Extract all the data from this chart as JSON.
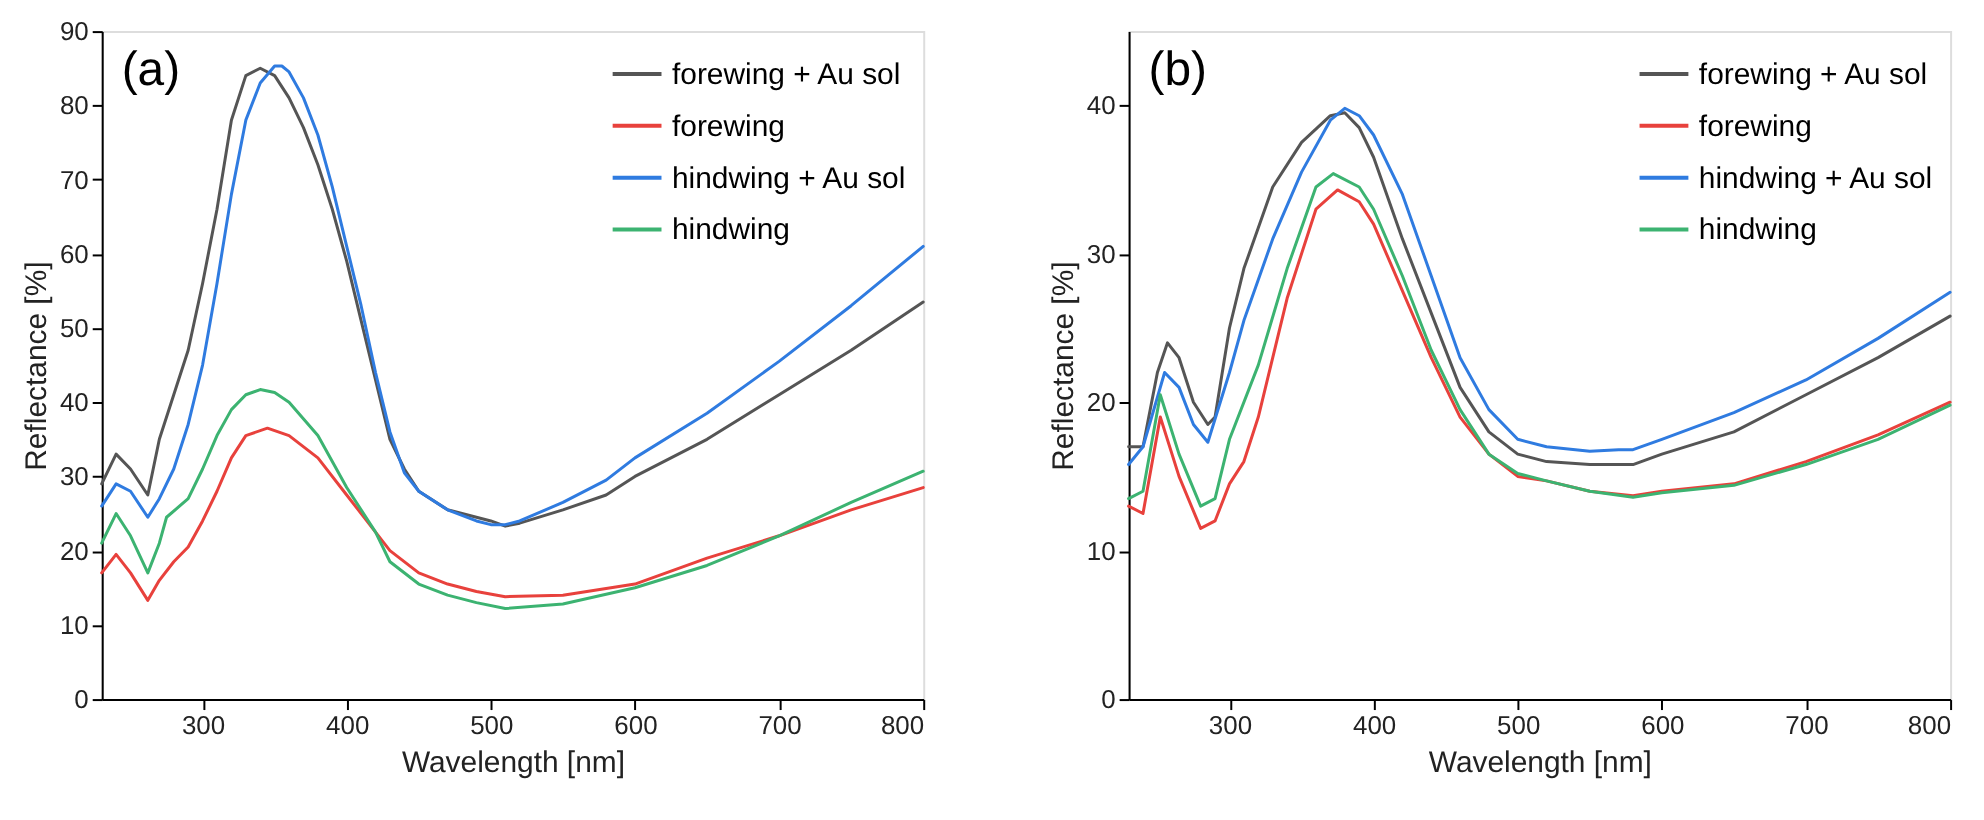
{
  "chart_data": [
    {
      "type": "line",
      "title": "(a)",
      "xlabel": "Wavelength [nm]",
      "ylabel": "Reflectance [%]",
      "xlim": [
        230,
        800
      ],
      "xticks": [
        300,
        400,
        500,
        600,
        700,
        800
      ],
      "ylim": [
        0,
        90
      ],
      "yticks": [
        0,
        10,
        20,
        30,
        40,
        50,
        60,
        70,
        80,
        90
      ],
      "grid": false,
      "legend": "top right",
      "series": [
        {
          "name": "forewing + Au sol",
          "color": "#555555",
          "x": [
            230,
            240,
            250,
            262,
            270,
            280,
            290,
            300,
            310,
            320,
            330,
            340,
            350,
            360,
            370,
            380,
            390,
            400,
            410,
            420,
            430,
            440,
            450,
            470,
            490,
            500,
            510,
            520,
            550,
            580,
            600,
            650,
            700,
            750,
            800
          ],
          "values": [
            29,
            33,
            31,
            27.5,
            35,
            41,
            47,
            56,
            66,
            78,
            84,
            85,
            84,
            81,
            77,
            72,
            66,
            59,
            51,
            43,
            35,
            31,
            28,
            25.5,
            24.5,
            24,
            23.3,
            23.7,
            25.5,
            27.5,
            30,
            35,
            41,
            47,
            53.5
          ]
        },
        {
          "name": "forewing",
          "color": "#e8413c",
          "x": [
            230,
            240,
            250,
            262,
            270,
            280,
            290,
            300,
            310,
            320,
            330,
            345,
            360,
            380,
            400,
            420,
            430,
            450,
            470,
            490,
            510,
            550,
            600,
            650,
            700,
            750,
            800
          ],
          "values": [
            17,
            19.5,
            17,
            13.3,
            16,
            18.5,
            20.5,
            24,
            28,
            32.5,
            35.5,
            36.5,
            35.5,
            32.5,
            27.5,
            22.5,
            20,
            17,
            15.5,
            14.5,
            13.8,
            14,
            15.5,
            19,
            22,
            25.5,
            28.5
          ]
        },
        {
          "name": "hindwing + Au sol",
          "color": "#2f7be0",
          "x": [
            230,
            240,
            250,
            262,
            270,
            280,
            290,
            300,
            310,
            320,
            330,
            340,
            350,
            355,
            360,
            370,
            380,
            390,
            400,
            410,
            420,
            430,
            440,
            450,
            470,
            490,
            500,
            510,
            520,
            550,
            580,
            600,
            650,
            700,
            750,
            800
          ],
          "values": [
            26,
            29,
            28,
            24.5,
            27,
            31,
            37,
            45,
            56,
            68,
            78,
            83,
            85.3,
            85.3,
            84.5,
            81,
            76,
            69,
            61,
            53,
            44,
            36,
            30.5,
            28,
            25.5,
            24,
            23.5,
            23.5,
            24,
            26.5,
            29.5,
            32.5,
            38.5,
            45.5,
            53,
            61
          ]
        },
        {
          "name": "hindwing",
          "color": "#3cb371",
          "x": [
            230,
            240,
            250,
            262,
            270,
            275,
            290,
            300,
            310,
            320,
            330,
            340,
            350,
            360,
            380,
            400,
            420,
            430,
            450,
            470,
            490,
            510,
            550,
            600,
            650,
            700,
            750,
            800
          ],
          "values": [
            21,
            25,
            22,
            17,
            21,
            24.5,
            27,
            31,
            35.5,
            39,
            41,
            41.7,
            41.3,
            40,
            35.5,
            28.5,
            22.5,
            18.5,
            15.5,
            14,
            13,
            12.2,
            12.8,
            15,
            18,
            22,
            26.5,
            30.7
          ]
        }
      ]
    },
    {
      "type": "line",
      "title": "(b)",
      "xlabel": "Wavelength [nm]",
      "ylabel": "Reflectance [%]",
      "xlim": [
        230,
        800
      ],
      "xticks": [
        300,
        400,
        500,
        600,
        700,
        800
      ],
      "ylim": [
        0,
        45
      ],
      "yticks": [
        0,
        10,
        20,
        30,
        40
      ],
      "grid": false,
      "legend": "top right",
      "series": [
        {
          "name": "forewing + Au sol",
          "color": "#555555",
          "x": [
            230,
            240,
            250,
            257,
            265,
            275,
            285,
            290,
            300,
            310,
            330,
            350,
            370,
            380,
            390,
            400,
            420,
            440,
            460,
            480,
            500,
            520,
            550,
            580,
            600,
            650,
            700,
            750,
            800
          ],
          "values": [
            17,
            17,
            22,
            24,
            23,
            20,
            18.5,
            19,
            25,
            29,
            34.5,
            37.5,
            39.3,
            39.5,
            38.5,
            36.5,
            31,
            26,
            21,
            18,
            16.5,
            16,
            15.8,
            15.8,
            16.5,
            18,
            20.5,
            23,
            25.8
          ]
        },
        {
          "name": "forewing",
          "color": "#e8413c",
          "x": [
            230,
            240,
            252,
            265,
            280,
            290,
            300,
            310,
            320,
            340,
            360,
            375,
            390,
            400,
            420,
            440,
            460,
            480,
            500,
            520,
            550,
            580,
            600,
            650,
            700,
            750,
            800
          ],
          "values": [
            13,
            12.5,
            19,
            15,
            11.5,
            12,
            14.5,
            16,
            19,
            27,
            33,
            34.3,
            33.5,
            32,
            27.5,
            23,
            19,
            16.5,
            15,
            14.7,
            14,
            13.7,
            14,
            14.5,
            16,
            17.8,
            20
          ]
        },
        {
          "name": "hindwing + Au sol",
          "color": "#2f7be0",
          "x": [
            230,
            240,
            255,
            265,
            275,
            285,
            300,
            310,
            330,
            350,
            370,
            380,
            390,
            400,
            420,
            440,
            460,
            480,
            500,
            520,
            550,
            570,
            580,
            600,
            650,
            700,
            750,
            800
          ],
          "values": [
            15.8,
            17,
            22,
            21,
            18.5,
            17.3,
            22,
            25.5,
            31,
            35.5,
            39,
            39.8,
            39.3,
            38,
            34,
            28.5,
            23,
            19.5,
            17.5,
            17,
            16.7,
            16.8,
            16.8,
            17.5,
            19.3,
            21.5,
            24.3,
            27.4
          ]
        },
        {
          "name": "hindwing",
          "color": "#3cb371",
          "x": [
            230,
            240,
            252,
            265,
            280,
            290,
            300,
            320,
            340,
            360,
            372,
            390,
            400,
            420,
            440,
            460,
            480,
            500,
            520,
            550,
            580,
            600,
            650,
            700,
            750,
            800
          ],
          "values": [
            13.5,
            14,
            20.5,
            16.5,
            13,
            13.5,
            17.5,
            22.5,
            29,
            34.5,
            35.4,
            34.5,
            33,
            28.5,
            23.5,
            19.5,
            16.5,
            15.2,
            14.7,
            14,
            13.6,
            13.9,
            14.4,
            15.8,
            17.5,
            19.8
          ]
        }
      ]
    }
  ]
}
